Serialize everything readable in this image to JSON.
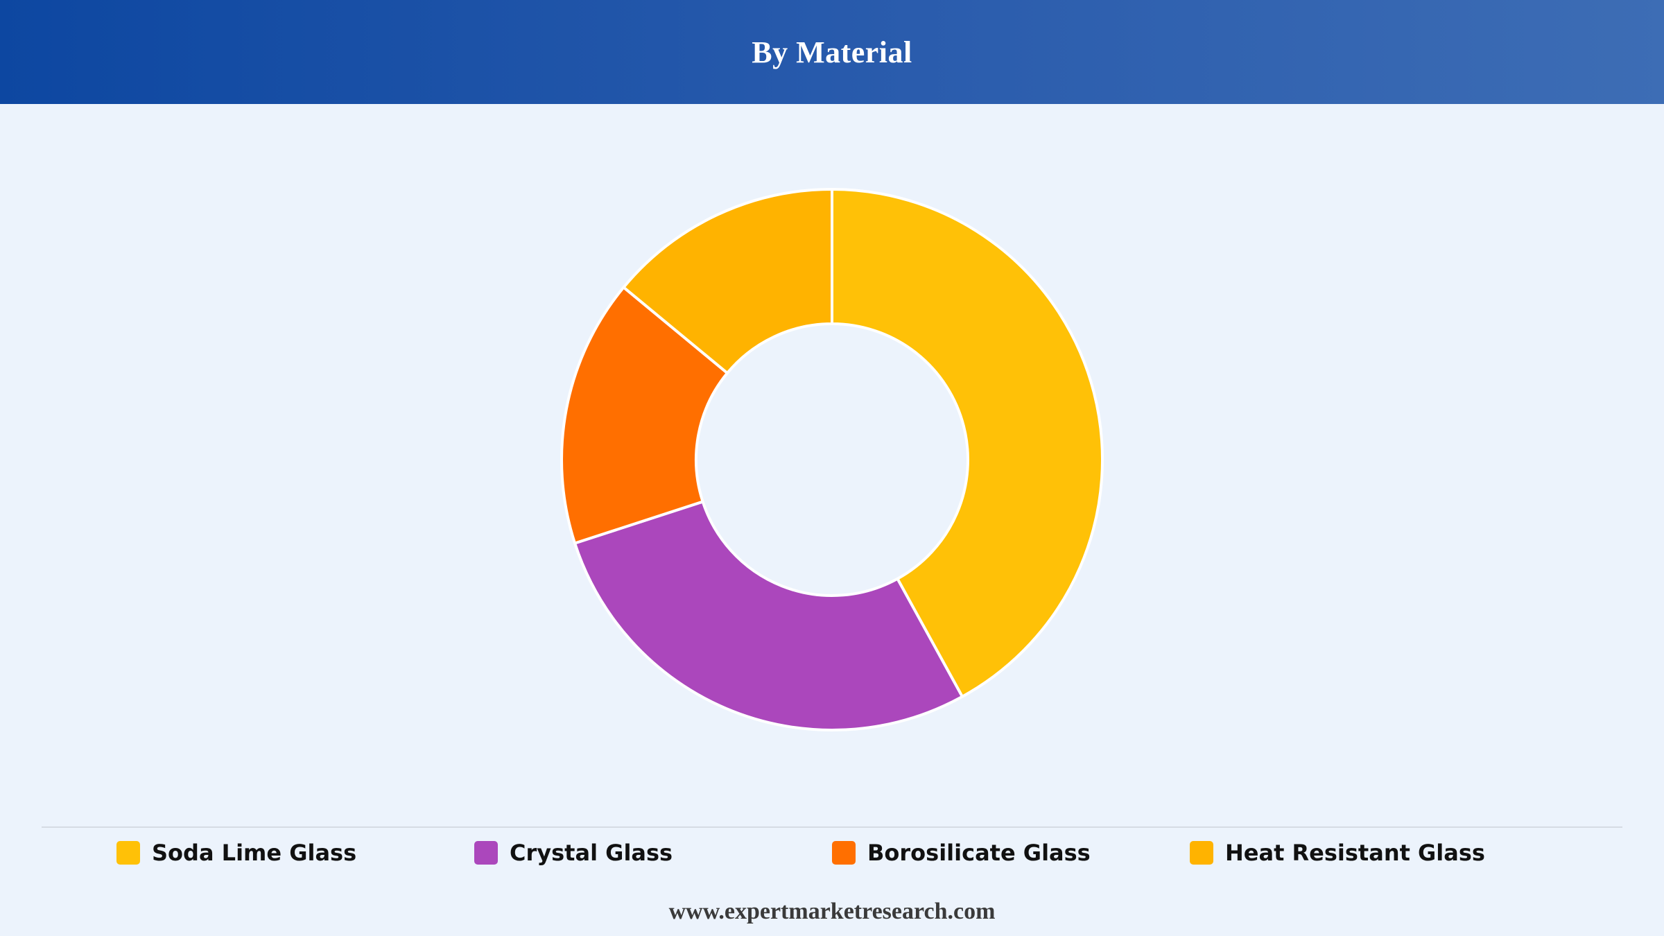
{
  "header": {
    "title": "By Material"
  },
  "chart_data": {
    "type": "pie",
    "variant": "donut",
    "title": "By Material",
    "categories": [
      "Soda Lime Glass",
      "Crystal Glass",
      "Borosilicate Glass",
      "Heat Resistant Glass"
    ],
    "values": [
      42,
      28,
      16,
      14
    ],
    "colors": [
      "#ffc107",
      "#ab47bc",
      "#ff6f00",
      "#ffb300"
    ],
    "legend_position": "bottom"
  },
  "footer": {
    "text": "www.expertmarketresearch.com"
  }
}
